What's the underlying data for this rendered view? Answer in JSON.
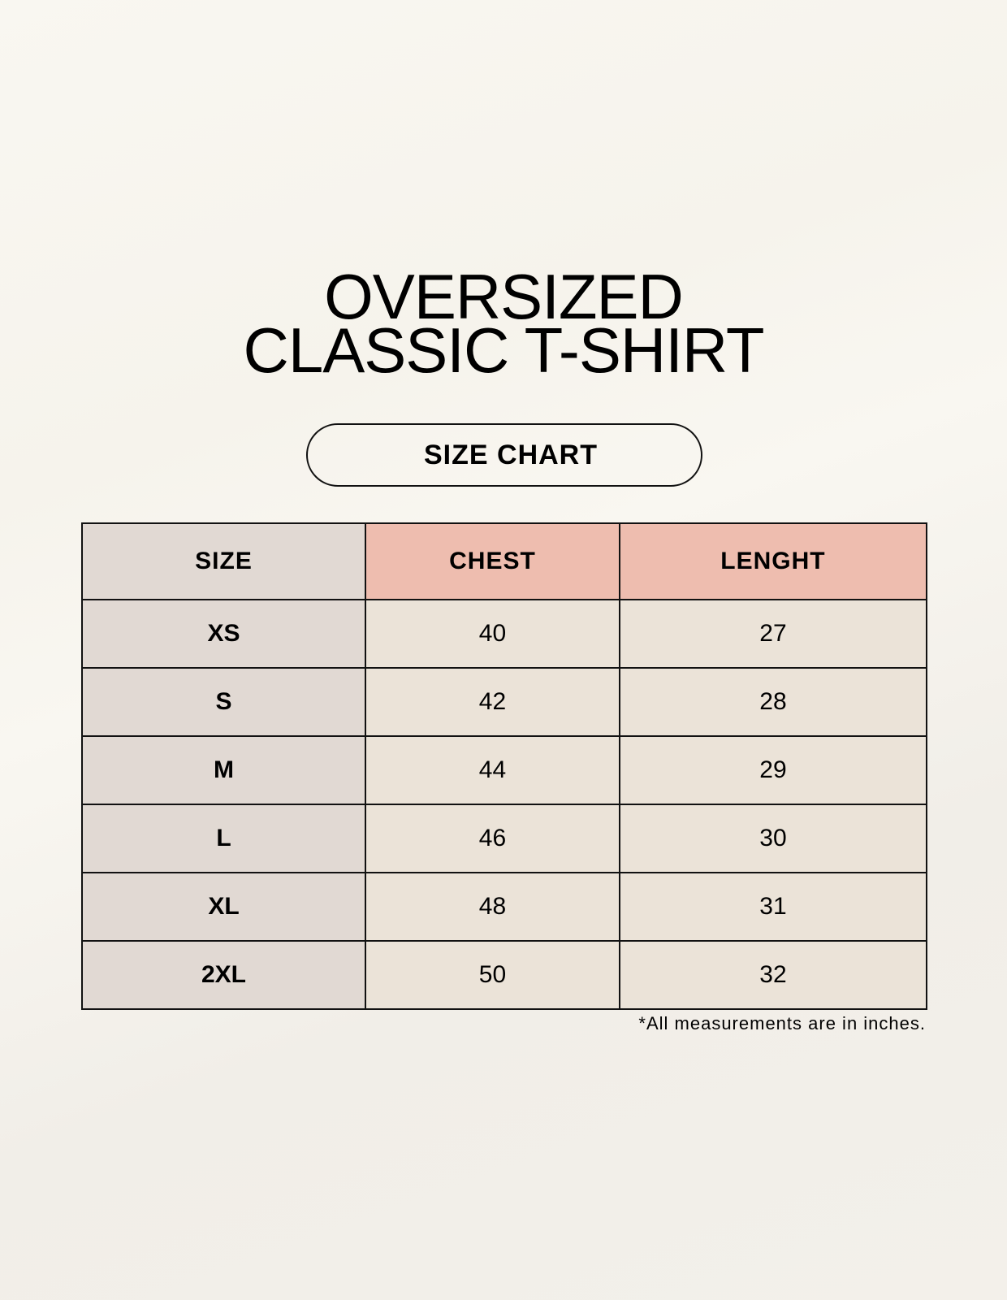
{
  "title_line1": "OVERSIZED",
  "title_line2": "CLASSIC T-SHIRT",
  "badge": "SIZE CHART",
  "table": {
    "headers": [
      "SIZE",
      "CHEST",
      "LENGHT"
    ],
    "rows": [
      [
        "XS",
        "40",
        "27"
      ],
      [
        "S",
        "42",
        "28"
      ],
      [
        "M",
        "44",
        "29"
      ],
      [
        "L",
        "46",
        "30"
      ],
      [
        "XL",
        "48",
        "31"
      ],
      [
        "2XL",
        "50",
        "32"
      ]
    ]
  },
  "footnote": "*All measurements are in inches.",
  "colors": {
    "size_column": "#e1d9d3",
    "header_accent": "#eebdaf",
    "cell": "#ebe3d8",
    "background": "#f8f6f0"
  }
}
